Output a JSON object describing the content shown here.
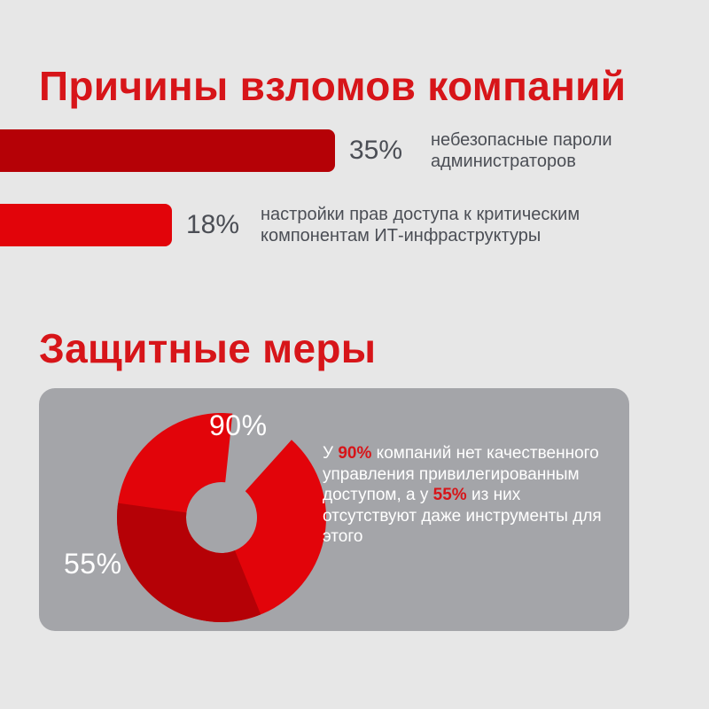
{
  "section1": {
    "title": "Причины взломов компаний",
    "items": [
      {
        "percent": "35%",
        "value": 35,
        "desc_line1": "небезопасные пароли",
        "desc_line2": "администраторов",
        "color": "#b50106"
      },
      {
        "percent": "18%",
        "value": 18,
        "desc_line1": "настройки прав доступа к критическим",
        "desc_line2": "компонентам ИТ-инфраструктуры",
        "color": "#e2040a"
      }
    ]
  },
  "section2": {
    "title": "Защитные меры",
    "label_outer": "90%",
    "label_inner": "55%",
    "text_prefix": "У ",
    "highlight1": "90%",
    "text_middle": " компаний нет качественного управления привилегированным доступом, а у ",
    "highlight2": "55%",
    "text_suffix": " из них отсутствуют даже инструменты для этого"
  },
  "chart_data": [
    {
      "type": "bar",
      "categories": [
        "небезопасные пароли администраторов",
        "настройки прав доступа к критическим компонентам ИТ-инфраструктуры"
      ],
      "values": [
        35,
        18
      ],
      "orientation": "horizontal"
    },
    {
      "type": "pie",
      "series": [
        {
          "values": [
            90,
            55
          ]
        }
      ],
      "colors": [
        "#e2040a",
        "#b50106"
      ]
    }
  ],
  "colors": {
    "accent": "#d71519",
    "bar_dark": "#b50106",
    "bar_light": "#e2040a",
    "text_gray": "#4b4e55",
    "panel": "#a4a5a9",
    "background": "#e7e7e7"
  }
}
